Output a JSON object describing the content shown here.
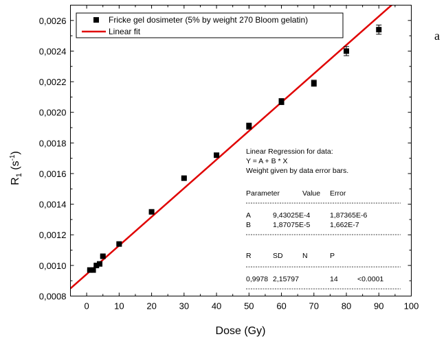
{
  "panel_label": "a",
  "chart_data": {
    "type": "scatter",
    "xlabel": "Dose (Gy)",
    "ylabel": {
      "main": "R",
      "sub": "1",
      "unit_open": " (s",
      "unit_sup": "-1",
      "unit_close": ")"
    },
    "xlim": [
      -5,
      100
    ],
    "ylim": [
      0.0008,
      0.0027
    ],
    "x_ticks": [
      0,
      10,
      20,
      30,
      40,
      50,
      60,
      70,
      80,
      90,
      100
    ],
    "x_tick_labels": [
      "0",
      "10",
      "20",
      "30",
      "40",
      "50",
      "60",
      "70",
      "80",
      "90",
      "100"
    ],
    "y_ticks": [
      0.0008,
      0.001,
      0.0012,
      0.0014,
      0.0016,
      0.0018,
      0.002,
      0.0022,
      0.0024,
      0.0026
    ],
    "y_tick_labels": [
      "0,0008",
      "0,0010",
      "0,0012",
      "0,0014",
      "0,0016",
      "0,0018",
      "0,0020",
      "0,0022",
      "0,0024",
      "0,0026"
    ],
    "grid": false,
    "legend_position": "top-left",
    "series": [
      {
        "name": "Fricke gel dosimeter (5% by weight 270 Bloom gelatin)",
        "kind": "scatter",
        "color": "#000000",
        "x": [
          1,
          2,
          3,
          4,
          5,
          10,
          20,
          30,
          40,
          50,
          60,
          70,
          80,
          90
        ],
        "y": [
          0.00097,
          0.00097,
          0.001,
          0.00101,
          0.00106,
          0.00114,
          0.00135,
          0.00157,
          0.00172,
          0.00191,
          0.00207,
          0.00219,
          0.0024,
          0.00254
        ],
        "error": [
          5e-06,
          5e-06,
          5e-06,
          5e-06,
          5e-06,
          5e-06,
          5e-06,
          5e-06,
          5e-06,
          2e-05,
          2e-05,
          2e-05,
          3e-05,
          3e-05
        ]
      },
      {
        "name": "Linear fit",
        "kind": "line",
        "color": "#e00000",
        "intercept": 0.000943025,
        "slope": 1.87075e-05
      }
    ],
    "annotation": {
      "header": [
        "Linear Regression for data:",
        "Y = A + B * X",
        "Weight given by data error bars."
      ],
      "param_header": [
        "Parameter",
        "Value",
        "Error"
      ],
      "params": [
        [
          "A",
          "9,43025E-4",
          "1,87365E-6"
        ],
        [
          "B",
          "1,87075E-5",
          "1,662E-7"
        ]
      ],
      "stat_header": [
        "R",
        "SD",
        "N",
        "P"
      ],
      "stats": [
        "0,9978",
        "2,15797",
        "14",
        "<0.0001"
      ]
    }
  }
}
